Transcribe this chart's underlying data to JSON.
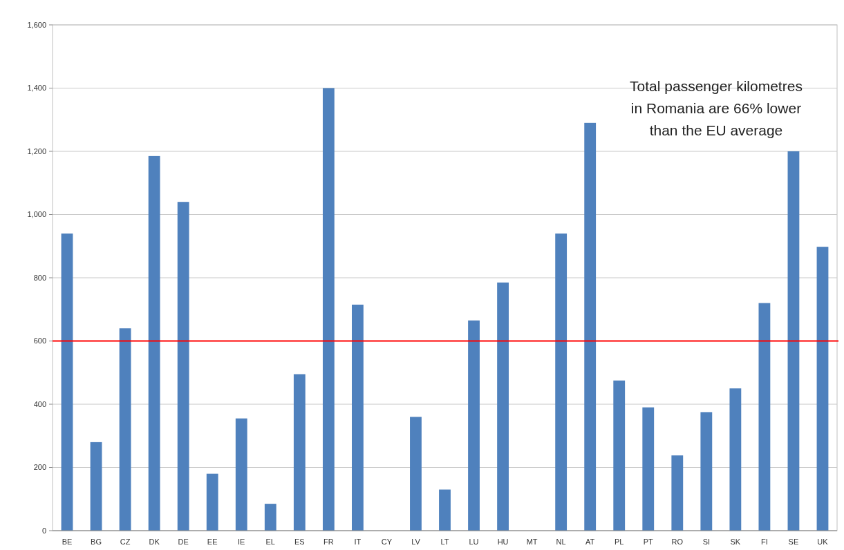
{
  "chart_data": {
    "type": "bar",
    "categories": [
      "BE",
      "BG",
      "CZ",
      "DK",
      "DE",
      "EE",
      "IE",
      "EL",
      "ES",
      "FR",
      "IT",
      "CY",
      "LV",
      "LT",
      "LU",
      "HU",
      "MT",
      "NL",
      "AT",
      "PL",
      "PT",
      "RO",
      "SI",
      "SK",
      "FI",
      "SE",
      "UK"
    ],
    "values": [
      940,
      280,
      640,
      1185,
      1040,
      180,
      355,
      85,
      495,
      1400,
      715,
      null,
      360,
      130,
      665,
      785,
      null,
      940,
      1290,
      475,
      390,
      238,
      375,
      450,
      720,
      1200,
      898
    ],
    "color": "#4f81bd",
    "ylim": [
      0,
      1600
    ],
    "yticks": [
      0,
      200,
      400,
      600,
      800,
      {
        "value": 1000,
        "label": "1,000"
      },
      {
        "value": 1200,
        "label": "1,200"
      },
      {
        "value": 1400,
        "label": "1,400"
      },
      {
        "value": 1600,
        "label": "1,600"
      }
    ],
    "grid": "y",
    "ref_lines": [
      {
        "axis": "y",
        "value": 600,
        "color": "#ff0000"
      }
    ],
    "annotations": [
      "Total passenger kilometres\nin Romania are 66% lower\nthan the EU average"
    ]
  }
}
